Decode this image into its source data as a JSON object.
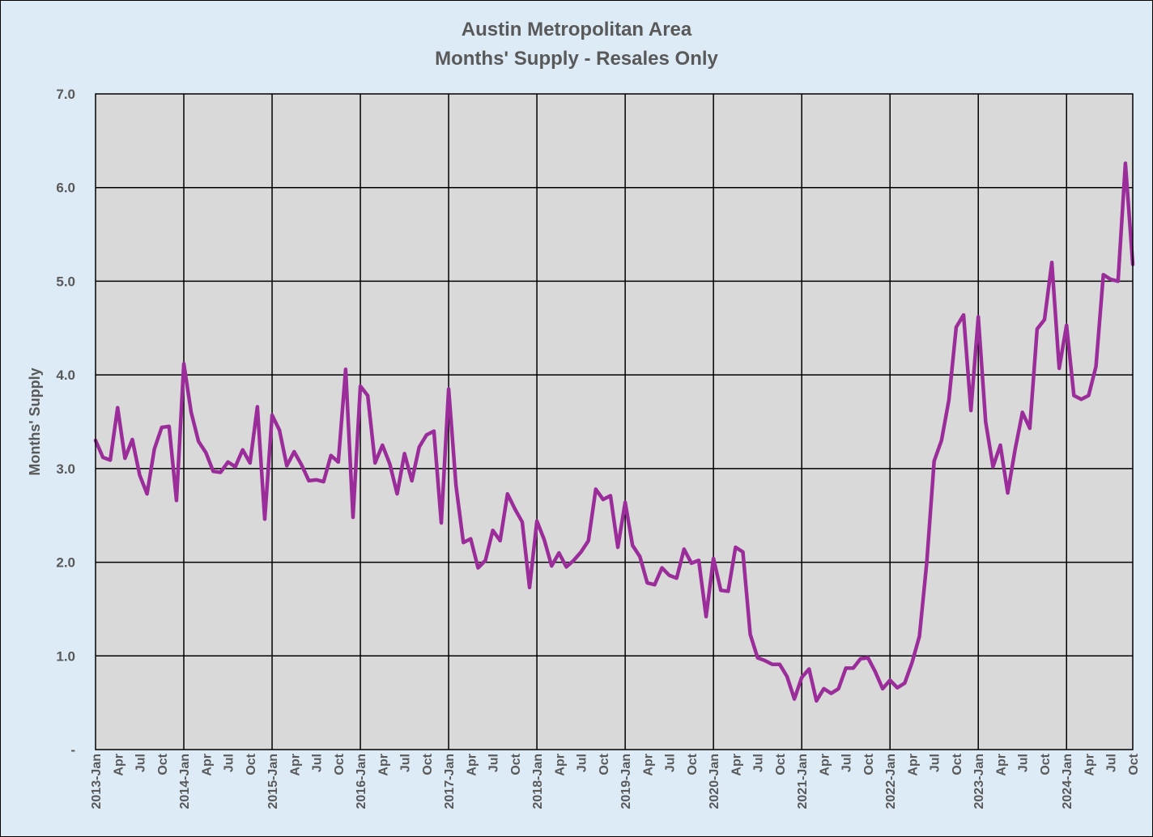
{
  "chart_data": {
    "type": "line",
    "title": "Austin Metropolitan Area",
    "subtitle": "Months' Supply - Resales Only",
    "xlabel": "",
    "ylabel": "Months' Supply",
    "ylim": [
      0,
      7
    ],
    "y_ticks": [
      "-",
      "1.0",
      "2.0",
      "3.0",
      "4.0",
      "5.0",
      "6.0",
      "7.0"
    ],
    "x_start": "2013-Jan",
    "x_end": "2024-Oct",
    "grid": true,
    "legend": "none",
    "plot_background": "#d9d9d9",
    "chart_background": "#ddebf7",
    "line_color": "#9b2d9a",
    "grid_color": "#000000",
    "text_color": "#595959",
    "x_tick_labels": [
      "2013-Jan",
      "Apr",
      "Jul",
      "Oct",
      "2014-Jan",
      "Apr",
      "Jul",
      "Oct",
      "2015-Jan",
      "Apr",
      "Jul",
      "Oct",
      "2016-Jan",
      "Apr",
      "Jul",
      "Oct",
      "2017-Jan",
      "Apr",
      "Jul",
      "Oct",
      "2018-Jan",
      "Apr",
      "Jul",
      "Oct",
      "2019-Jan",
      "Apr",
      "Jul",
      "Oct",
      "2020-Jan",
      "Apr",
      "Jul",
      "Oct",
      "2021-Jan",
      "Apr",
      "Jul",
      "Oct",
      "2022-Jan",
      "Apr",
      "Jul",
      "Oct",
      "2023-Jan",
      "Apr",
      "Jul",
      "Oct",
      "2024-Jan",
      "Apr",
      "Jul",
      "Oct"
    ],
    "series": [
      {
        "values": [
          3.3,
          3.12,
          3.09,
          3.65,
          3.11,
          3.31,
          2.93,
          2.73,
          3.21,
          3.44,
          3.45,
          2.66,
          4.12,
          3.6,
          3.29,
          3.17,
          2.97,
          2.96,
          3.07,
          3.02,
          3.2,
          3.06,
          3.66,
          2.46,
          3.57,
          3.41,
          3.03,
          3.18,
          3.04,
          2.87,
          2.88,
          2.86,
          3.14,
          3.07,
          4.06,
          2.48,
          3.88,
          3.78,
          3.06,
          3.25,
          3.05,
          2.73,
          3.16,
          2.87,
          3.23,
          3.36,
          3.4,
          2.42,
          3.85,
          2.82,
          2.21,
          2.25,
          1.94,
          2.02,
          2.34,
          2.23,
          2.73,
          2.57,
          2.43,
          1.73,
          2.44,
          2.24,
          1.96,
          2.1,
          1.95,
          2.02,
          2.11,
          2.23,
          2.78,
          2.67,
          2.71,
          2.16,
          2.64,
          2.18,
          2.06,
          1.78,
          1.76,
          1.94,
          1.86,
          1.83,
          2.14,
          1.99,
          2.02,
          1.42,
          2.04,
          1.7,
          1.69,
          2.16,
          2.11,
          1.23,
          0.98,
          0.95,
          0.91,
          0.91,
          0.78,
          0.54,
          0.77,
          0.86,
          0.52,
          0.65,
          0.6,
          0.65,
          0.87,
          0.87,
          0.97,
          0.98,
          0.83,
          0.65,
          0.74,
          0.66,
          0.71,
          0.93,
          1.21,
          2.0,
          3.08,
          3.3,
          3.73,
          4.51,
          4.64,
          3.62,
          4.62,
          3.5,
          3.02,
          3.25,
          2.74,
          3.2,
          3.6,
          3.43,
          4.49,
          4.59,
          5.2,
          4.07,
          4.53,
          3.78,
          3.74,
          3.78,
          4.09,
          5.07,
          5.02,
          5.0,
          6.26,
          5.18
        ]
      }
    ]
  }
}
